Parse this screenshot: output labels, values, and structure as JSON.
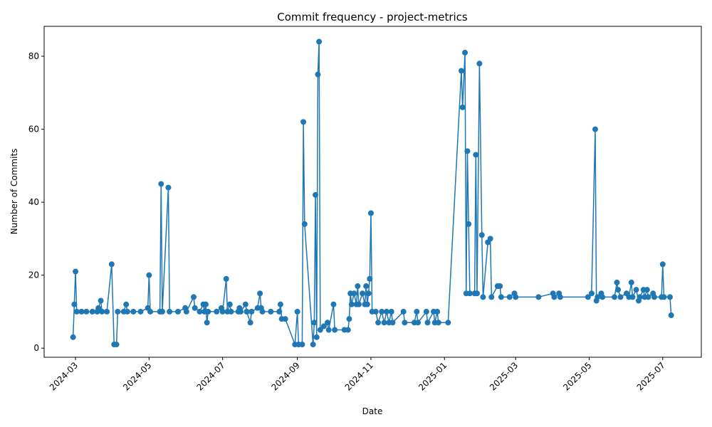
{
  "chart_data": {
    "type": "line",
    "title": "Commit frequency - project-metrics",
    "x_label": "Date",
    "y_label": "Number of Commits",
    "x": [
      "2024-02-28",
      "2024-02-29",
      "2024-03-01",
      "2024-03-02",
      "2024-03-06",
      "2024-03-10",
      "2024-03-15",
      "2024-03-19",
      "2024-03-20",
      "2024-03-22",
      "2024-03-23",
      "2024-03-27",
      "2024-03-31",
      "2024-04-02",
      "2024-04-04",
      "2024-04-05",
      "2024-04-10",
      "2024-04-12",
      "2024-04-13",
      "2024-04-18",
      "2024-04-24",
      "2024-04-30",
      "2024-05-01",
      "2024-05-02",
      "2024-05-10",
      "2024-05-11",
      "2024-05-12",
      "2024-05-17",
      "2024-05-18",
      "2024-05-25",
      "2024-05-31",
      "2024-06-01",
      "2024-06-07",
      "2024-06-08",
      "2024-06-12",
      "2024-06-15",
      "2024-06-16",
      "2024-06-17",
      "2024-06-18",
      "2024-06-19",
      "2024-06-26",
      "2024-06-30",
      "2024-07-01",
      "2024-07-04",
      "2024-07-05",
      "2024-07-07",
      "2024-07-08",
      "2024-07-14",
      "2024-07-15",
      "2024-07-16",
      "2024-07-20",
      "2024-07-21",
      "2024-07-24",
      "2024-07-25",
      "2024-07-30",
      "2024-08-01",
      "2024-08-02",
      "2024-08-03",
      "2024-08-10",
      "2024-08-17",
      "2024-08-18",
      "2024-08-19",
      "2024-08-22",
      "2024-08-30",
      "2024-09-01",
      "2024-09-02",
      "2024-09-05",
      "2024-09-06",
      "2024-09-07",
      "2024-09-14",
      "2024-09-15",
      "2024-09-16",
      "2024-09-17",
      "2024-09-18",
      "2024-09-19",
      "2024-09-20",
      "2024-09-23",
      "2024-09-26",
      "2024-09-27",
      "2024-10-01",
      "2024-10-02",
      "2024-10-10",
      "2024-10-13",
      "2024-10-14",
      "2024-10-15",
      "2024-10-16",
      "2024-10-18",
      "2024-10-20",
      "2024-10-21",
      "2024-10-22",
      "2024-10-25",
      "2024-10-27",
      "2024-10-28",
      "2024-10-29",
      "2024-10-30",
      "2024-10-31",
      "2024-11-01",
      "2024-11-02",
      "2024-11-05",
      "2024-11-07",
      "2024-11-10",
      "2024-11-12",
      "2024-11-14",
      "2024-11-16",
      "2024-11-18",
      "2024-11-19",
      "2024-11-28",
      "2024-11-29",
      "2024-12-07",
      "2024-12-09",
      "2024-12-10",
      "2024-12-17",
      "2024-12-18",
      "2024-12-23",
      "2024-12-24",
      "2024-12-26",
      "2024-12-27",
      "2025-01-04",
      "2025-01-15",
      "2025-01-16",
      "2025-01-18",
      "2025-01-19",
      "2025-01-20",
      "2025-01-21",
      "2025-01-22",
      "2025-01-26",
      "2025-01-27",
      "2025-01-28",
      "2025-01-30",
      "2025-02-01",
      "2025-02-02",
      "2025-02-06",
      "2025-02-08",
      "2025-02-09",
      "2025-02-14",
      "2025-02-16",
      "2025-02-17",
      "2025-02-24",
      "2025-02-28",
      "2025-03-01",
      "2025-03-20",
      "2025-04-01",
      "2025-04-02",
      "2025-04-06",
      "2025-04-07",
      "2025-04-30",
      "2025-05-03",
      "2025-05-06",
      "2025-05-07",
      "2025-05-08",
      "2025-05-11",
      "2025-05-12",
      "2025-05-22",
      "2025-05-24",
      "2025-05-25",
      "2025-05-27",
      "2025-06-01",
      "2025-06-03",
      "2025-06-05",
      "2025-06-06",
      "2025-06-09",
      "2025-06-11",
      "2025-06-12",
      "2025-06-15",
      "2025-06-16",
      "2025-06-18",
      "2025-06-19",
      "2025-06-23",
      "2025-06-24",
      "2025-06-30",
      "2025-07-01",
      "2025-07-02",
      "2025-07-07",
      "2025-07-08"
    ],
    "series": [
      {
        "color": "#1f77b4",
        "values": [
          3,
          12,
          21,
          10,
          10,
          10,
          10,
          10,
          11,
          13,
          10,
          10,
          23,
          1,
          1,
          10,
          10,
          12,
          10,
          10,
          10,
          11,
          20,
          10,
          10,
          45,
          10,
          44,
          10,
          10,
          11,
          10,
          14,
          11,
          10,
          12,
          10,
          12,
          7,
          10,
          10,
          11,
          10,
          19,
          10,
          12,
          10,
          10,
          11,
          10,
          12,
          10,
          7,
          10,
          11,
          15,
          11,
          10,
          10,
          10,
          12,
          8,
          8,
          1,
          10,
          1,
          1,
          62,
          34,
          1,
          7,
          42,
          3,
          75,
          84,
          5,
          6,
          7,
          5,
          12,
          5,
          5,
          5,
          8,
          15,
          12,
          15,
          12,
          17,
          12,
          15,
          12,
          17,
          12,
          15,
          19,
          37,
          10,
          10,
          7,
          10,
          7,
          10,
          7,
          10,
          7,
          10,
          7,
          7,
          10,
          7,
          10,
          7,
          10,
          7,
          10,
          7,
          7,
          76,
          66,
          81,
          15,
          54,
          34,
          15,
          15,
          53,
          15,
          78,
          31,
          14,
          29,
          30,
          14,
          17,
          17,
          14,
          14,
          15,
          14,
          14,
          15,
          14,
          15,
          14,
          14,
          15,
          60,
          13,
          14,
          15,
          14,
          14,
          18,
          16,
          14,
          15,
          14,
          18,
          14,
          16,
          13,
          14,
          16,
          14,
          16,
          14,
          15,
          14,
          14,
          23,
          14,
          14,
          9
        ]
      }
    ],
    "xlim": [
      "2024-02-04",
      "2025-08-02"
    ],
    "xticks": [
      {
        "value": "2024-03-01",
        "label": "2024-03"
      },
      {
        "value": "2024-05-01",
        "label": "2024-05"
      },
      {
        "value": "2024-07-01",
        "label": "2024-07"
      },
      {
        "value": "2024-09-01",
        "label": "2024-09"
      },
      {
        "value": "2024-11-01",
        "label": "2024-11"
      },
      {
        "value": "2025-01-01",
        "label": "2025-01"
      },
      {
        "value": "2025-03-01",
        "label": "2025-03"
      },
      {
        "value": "2025-05-01",
        "label": "2025-05"
      },
      {
        "value": "2025-07-01",
        "label": "2025-07"
      }
    ],
    "ylim": [
      -2.5,
      88.2
    ],
    "yticks": [
      0,
      20,
      40,
      60,
      80
    ],
    "grid": false,
    "markers": true
  }
}
